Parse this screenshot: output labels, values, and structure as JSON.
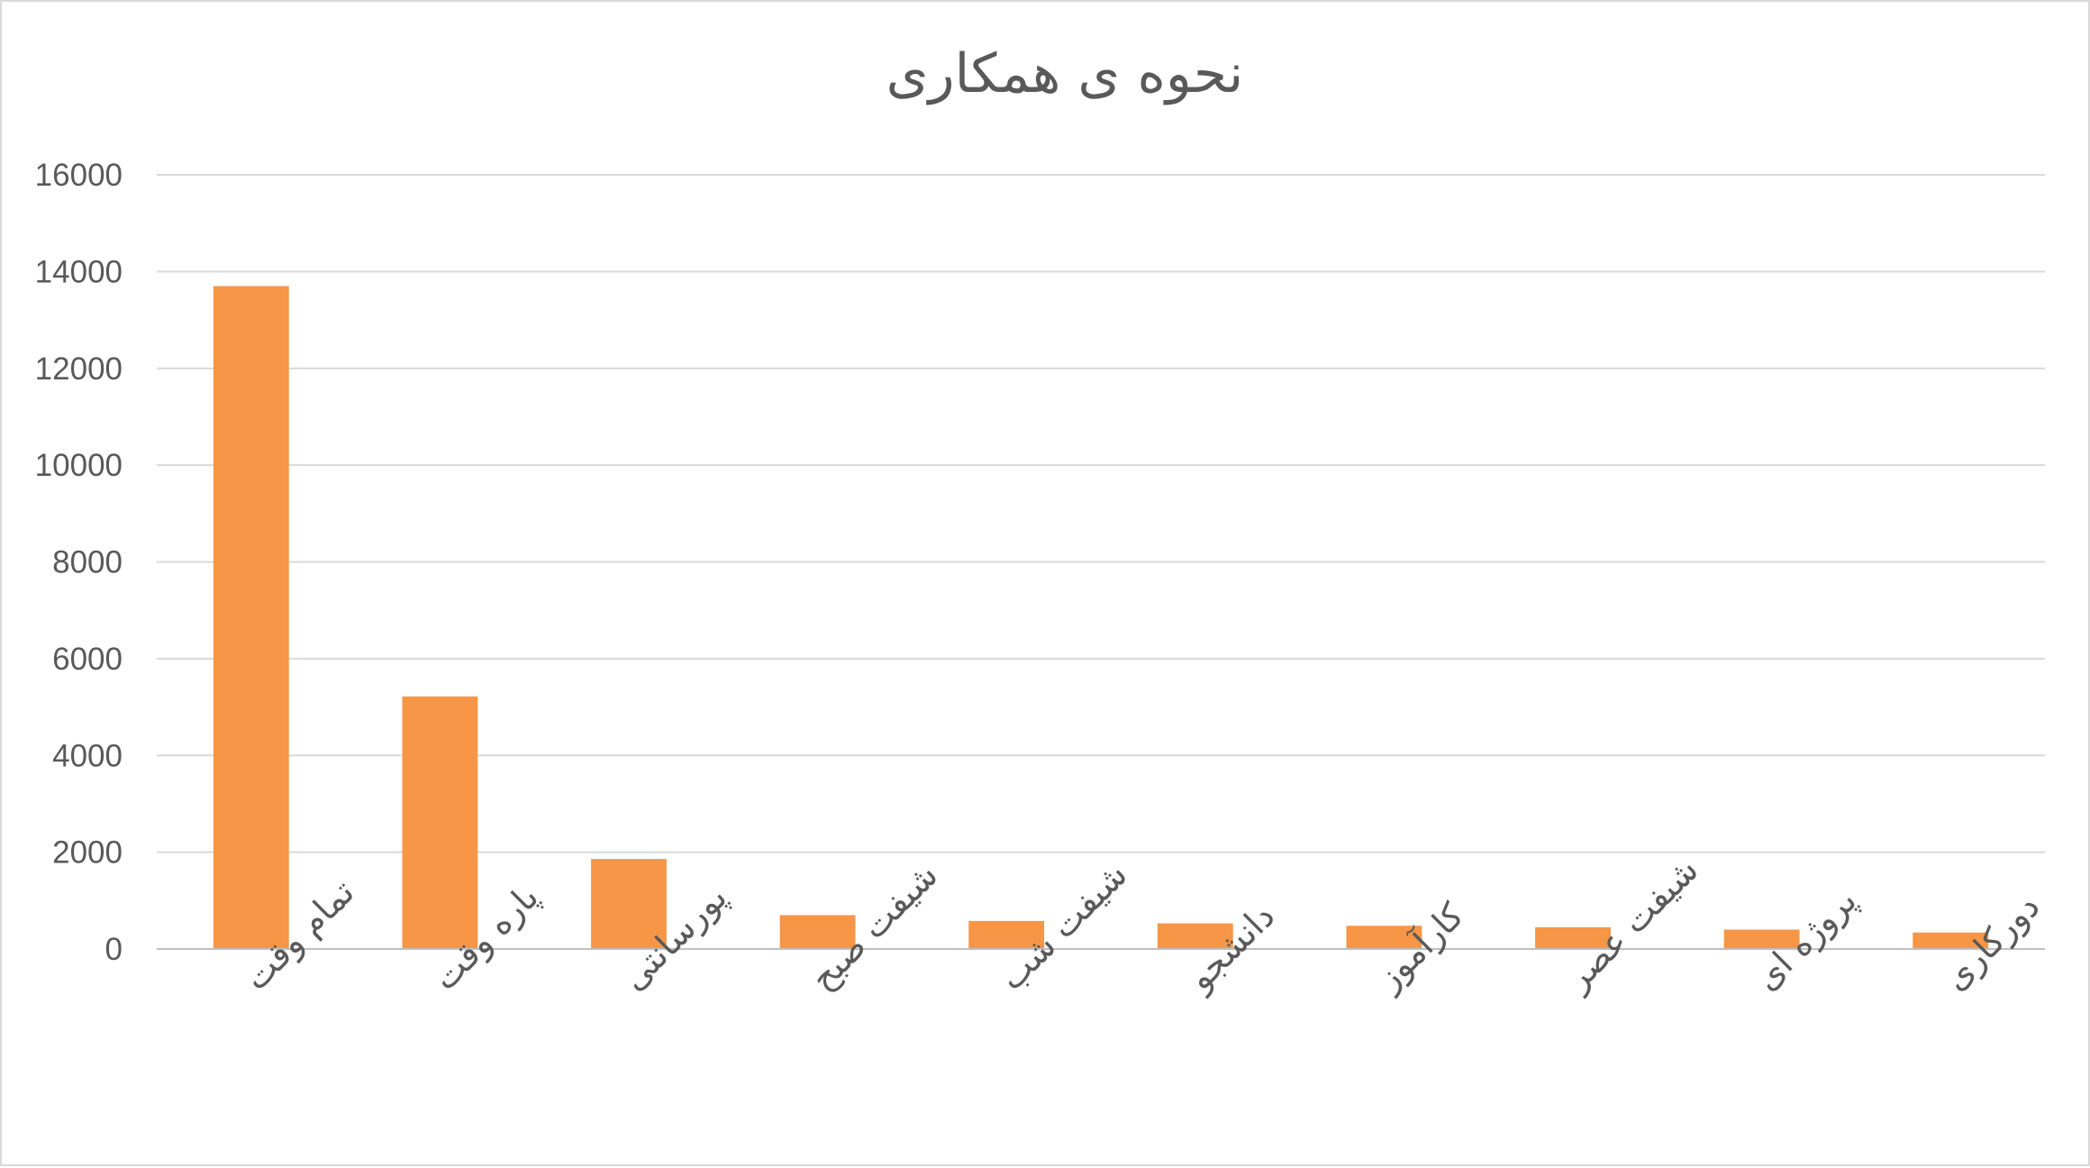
{
  "chart_data": {
    "type": "bar",
    "title": "نحوه ی همکاری",
    "xlabel": "",
    "ylabel": "",
    "categories": [
      "تمام وقت",
      "پاره وقت",
      "پورسانتی",
      "شیفت صبح",
      "شیفت شب",
      "دانشجو",
      "کارآموز",
      "شیفت عصر",
      "پروژه ای",
      "دورکاری"
    ],
    "values": [
      13700,
      5220,
      1860,
      700,
      580,
      530,
      480,
      450,
      400,
      340
    ],
    "ylim": [
      0,
      16000
    ],
    "yticks": [
      "0",
      "2000",
      "4000",
      "6000",
      "8000",
      "10000",
      "12000",
      "14000",
      "16000"
    ],
    "grid": true,
    "legend": "none",
    "bar_color": "#f79646"
  }
}
